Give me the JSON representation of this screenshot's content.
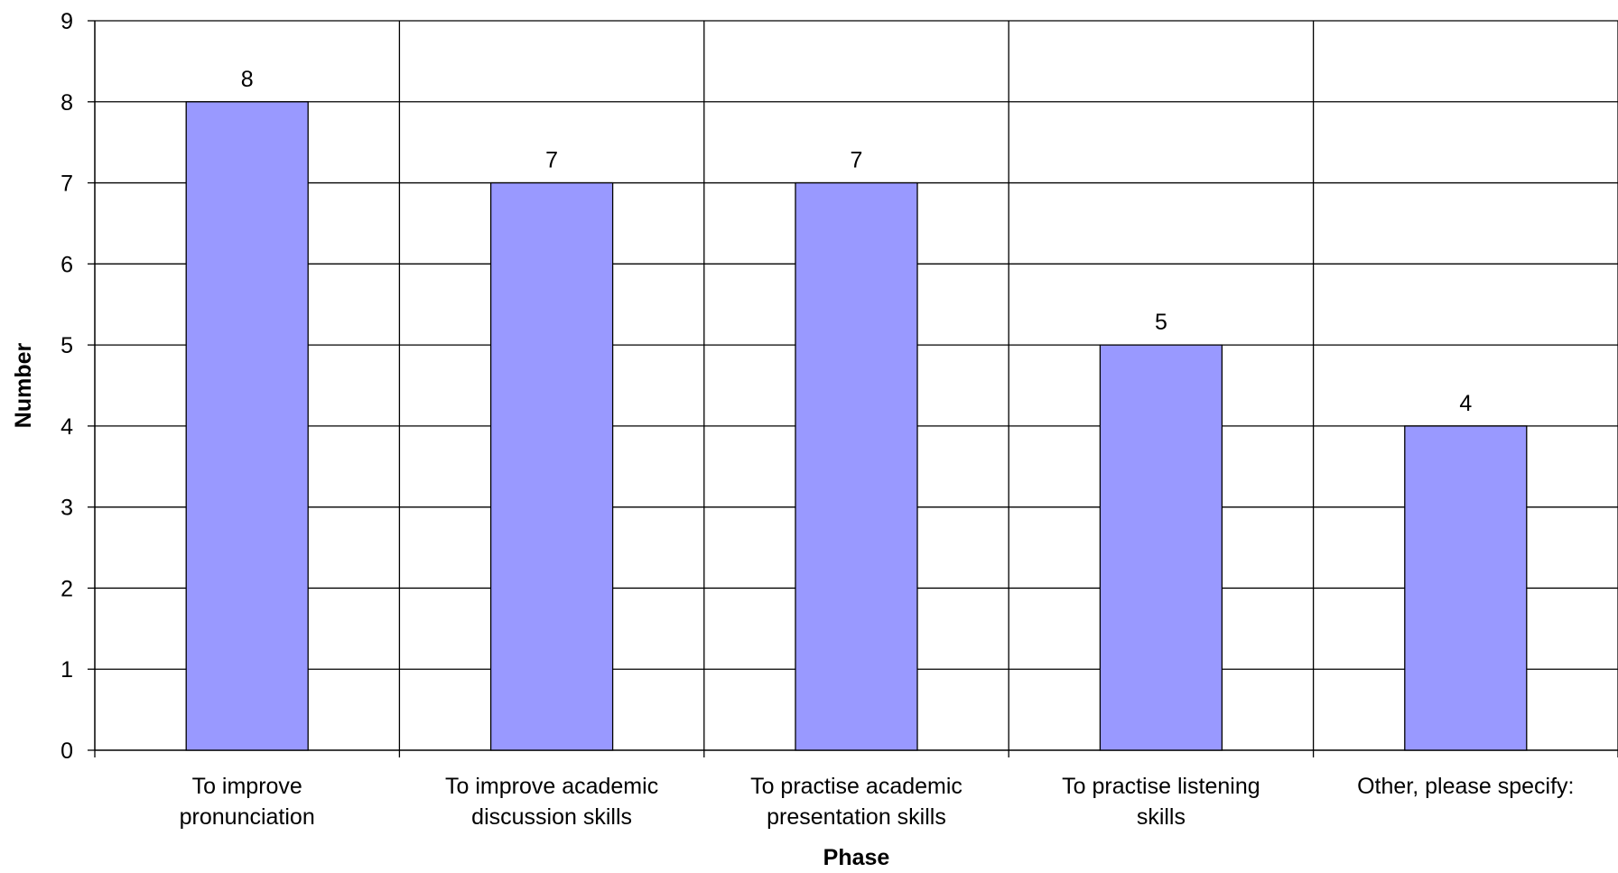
{
  "chart_data": {
    "type": "bar",
    "title": "",
    "xlabel": "Phase",
    "ylabel": "Number",
    "categories": [
      [
        "To improve",
        "pronunciation"
      ],
      [
        "To improve academic",
        "discussion skills"
      ],
      [
        "To practise academic",
        "presentation skills"
      ],
      [
        "To practise listening",
        "skills"
      ],
      [
        "Other, please specify:"
      ]
    ],
    "values": [
      8,
      7,
      7,
      5,
      4
    ],
    "data_labels": [
      "8",
      "7",
      "7",
      "5",
      "4"
    ],
    "ylim": [
      0,
      9
    ],
    "yticks": [
      "0",
      "1",
      "2",
      "3",
      "4",
      "5",
      "6",
      "7",
      "8",
      "9"
    ],
    "grid": true,
    "legend": "none",
    "colors": {
      "bar_fill": "#9999ff",
      "bar_stroke": "#000000",
      "grid": "#000000",
      "background": "#ffffff"
    }
  }
}
